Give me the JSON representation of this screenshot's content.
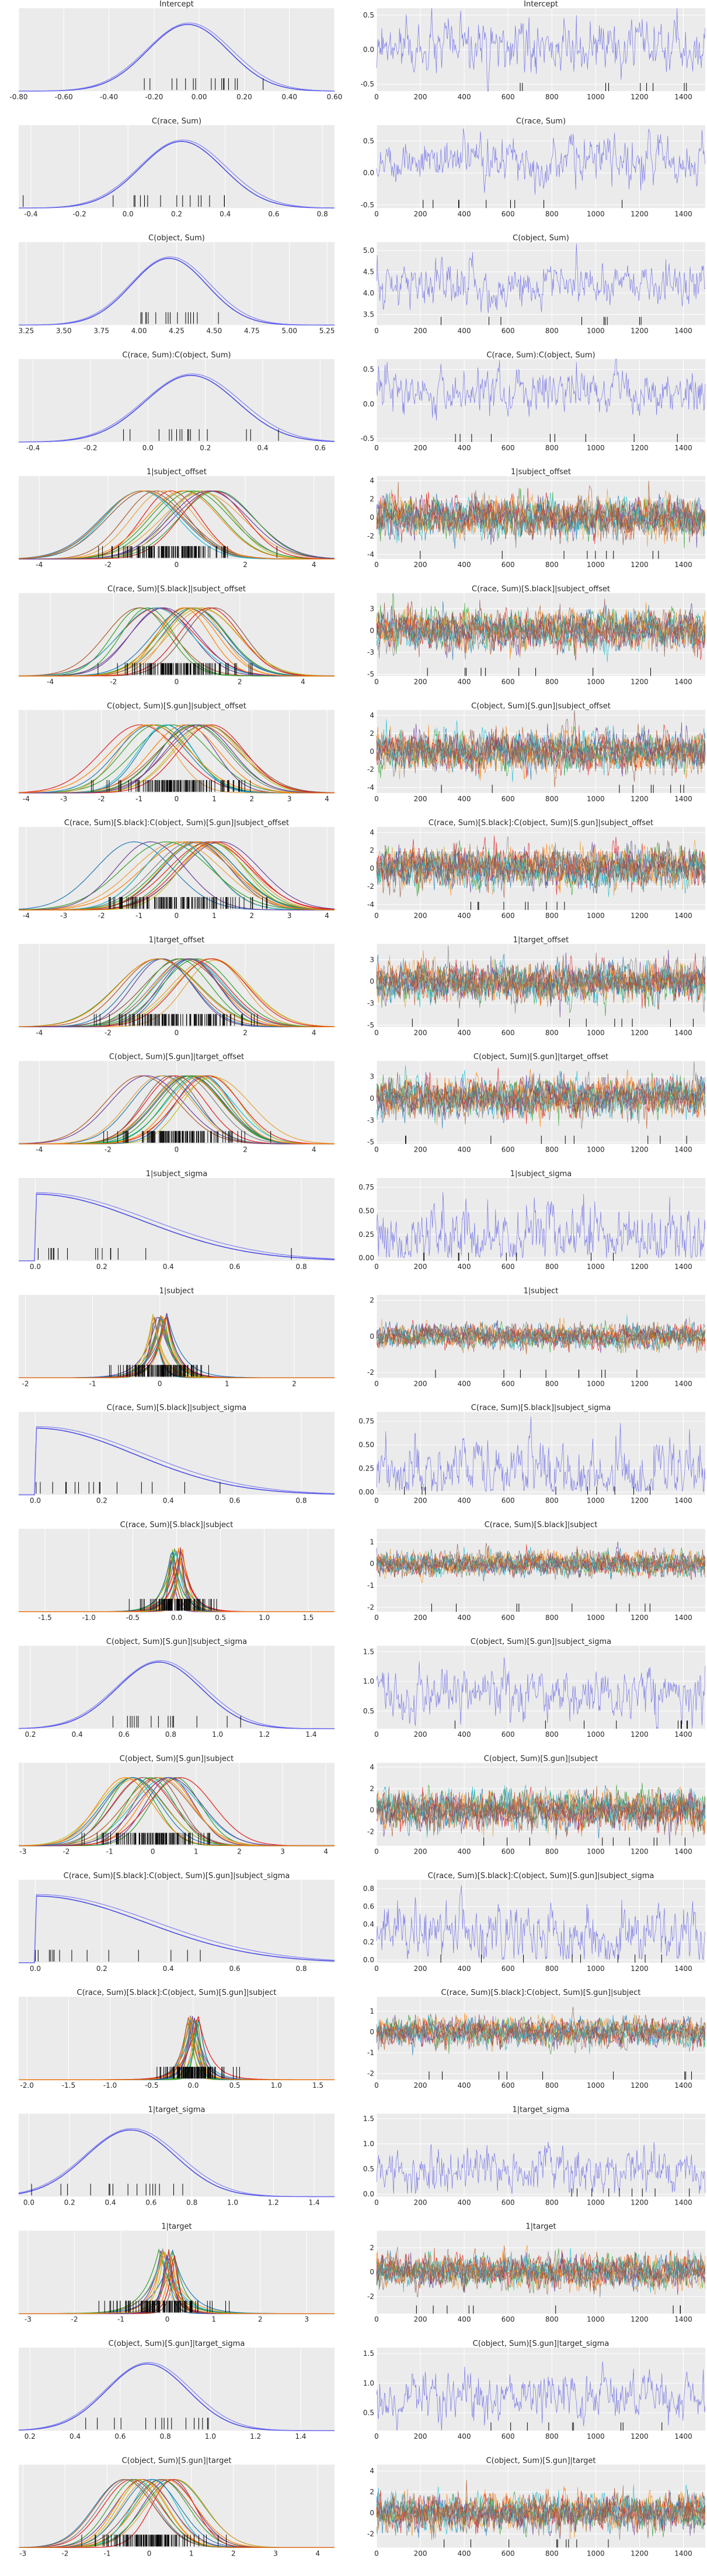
{
  "figure": {
    "style": {
      "background": "#ebebeb",
      "grid": "#ffffff",
      "text": "#262626",
      "series_default": "#4c4ce6"
    },
    "chain_colors": [
      "#e6a03c",
      "#33a02c",
      "#1f78b4",
      "#e31a1c",
      "#6a3d9a",
      "#ff7f00",
      "#b15928",
      "#17becf",
      "#8c564b",
      "#7f7f7f",
      "#bcbd22",
      "#2ca02c"
    ]
  },
  "chart_data": [
    {
      "row": 1,
      "title": "Intercept",
      "type": "density+trace",
      "multi": false,
      "density": {
        "x_ticks": [
          -0.8,
          -0.6,
          -0.4,
          -0.2,
          0.0,
          0.2,
          0.4,
          0.6
        ],
        "xlim": [
          -0.8,
          0.6
        ],
        "peak": -0.05,
        "spread": 0.18
      },
      "trace": {
        "y_ticks": [
          -0.5,
          0.0,
          0.5
        ],
        "ylim": [
          -0.6,
          0.6
        ],
        "x_ticks": [
          0,
          200,
          400,
          600,
          800,
          1000,
          1200,
          1400
        ],
        "xlim": [
          0,
          1500
        ],
        "center": 0.0,
        "amp": 0.18
      }
    },
    {
      "row": 2,
      "title": "C(race, Sum)",
      "type": "density+trace",
      "multi": false,
      "density": {
        "x_ticks": [
          -0.4,
          -0.2,
          0.0,
          0.2,
          0.4,
          0.6,
          0.8
        ],
        "xlim": [
          -0.45,
          0.85
        ],
        "peak": 0.22,
        "spread": 0.17
      },
      "trace": {
        "y_ticks": [
          -0.5,
          0.0,
          0.5
        ],
        "ylim": [
          -0.55,
          0.75
        ],
        "x_ticks": [
          0,
          200,
          400,
          600,
          800,
          1000,
          1200,
          1400
        ],
        "xlim": [
          0,
          1500
        ],
        "center": 0.2,
        "amp": 0.17
      }
    },
    {
      "row": 3,
      "title": "C(object, Sum)",
      "type": "density+trace",
      "multi": false,
      "density": {
        "x_ticks": [
          3.25,
          3.5,
          3.75,
          4.0,
          4.25,
          4.5,
          4.75,
          5.0,
          5.25
        ],
        "xlim": [
          3.2,
          5.3
        ],
        "peak": 4.2,
        "spread": 0.25
      },
      "trace": {
        "y_ticks": [
          3.5,
          4.0,
          4.5,
          5.0
        ],
        "ylim": [
          3.25,
          5.2
        ],
        "x_ticks": [
          0,
          200,
          400,
          600,
          800,
          1000,
          1200,
          1400
        ],
        "xlim": [
          0,
          1500
        ],
        "center": 4.2,
        "amp": 0.26
      }
    },
    {
      "row": 4,
      "title": "C(race, Sum):C(object, Sum)",
      "type": "density+trace",
      "multi": false,
      "density": {
        "x_ticks": [
          -0.4,
          -0.2,
          0.0,
          0.2,
          0.4,
          0.6
        ],
        "xlim": [
          -0.45,
          0.65
        ],
        "peak": 0.15,
        "spread": 0.16
      },
      "trace": {
        "y_ticks": [
          -0.5,
          0.0,
          0.5
        ],
        "ylim": [
          -0.55,
          0.65
        ],
        "x_ticks": [
          0,
          200,
          400,
          600,
          800,
          1000,
          1200,
          1400
        ],
        "xlim": [
          0,
          1500
        ],
        "center": 0.15,
        "amp": 0.16
      }
    },
    {
      "row": 5,
      "title": "1|subject_offset",
      "type": "density+trace",
      "multi": true,
      "density": {
        "x_ticks": [
          -4,
          -2,
          0,
          2,
          4
        ],
        "xlim": [
          -4.6,
          4.6
        ],
        "peak": 0.0,
        "spread": 1.0
      },
      "trace": {
        "y_ticks": [
          -4,
          -2,
          0,
          2,
          4
        ],
        "ylim": [
          -4.5,
          4.5
        ],
        "x_ticks": [
          0,
          200,
          400,
          600,
          800,
          1000,
          1200,
          1400
        ],
        "xlim": [
          0,
          1500
        ],
        "center": 0.0,
        "amp": 1.0
      }
    },
    {
      "row": 6,
      "title": "C(race, Sum)[S.black]|subject_offset",
      "type": "density+trace",
      "multi": true,
      "density": {
        "x_ticks": [
          -4,
          -2,
          0,
          2,
          4
        ],
        "xlim": [
          -5,
          5
        ],
        "peak": 0.0,
        "spread": 1.0
      },
      "trace": {
        "y_ticks": [
          -5.0,
          -2.5,
          0.0,
          2.5
        ],
        "ylim": [
          -5.2,
          4.3
        ],
        "x_ticks": [
          0,
          200,
          400,
          600,
          800,
          1000,
          1200,
          1400
        ],
        "xlim": [
          0,
          1500
        ],
        "center": 0.0,
        "amp": 1.0
      }
    },
    {
      "row": 7,
      "title": "C(object, Sum)[S.gun]|subject_offset",
      "type": "density+trace",
      "multi": true,
      "density": {
        "x_ticks": [
          -4,
          -3,
          -2,
          -1,
          0,
          1,
          2,
          3,
          4
        ],
        "xlim": [
          -4.2,
          4.2
        ],
        "peak": 0.0,
        "spread": 0.9
      },
      "trace": {
        "y_ticks": [
          -4,
          -2,
          0,
          2,
          4
        ],
        "ylim": [
          -4.6,
          4.6
        ],
        "x_ticks": [
          0,
          200,
          400,
          600,
          800,
          1000,
          1200,
          1400
        ],
        "xlim": [
          0,
          1500
        ],
        "center": 0.0,
        "amp": 1.0
      }
    },
    {
      "row": 8,
      "title": "C(race, Sum)[S.black]:C(object, Sum)[S.gun]|subject_offset",
      "type": "density+trace",
      "multi": true,
      "density": {
        "x_ticks": [
          -4,
          -3,
          -2,
          -1,
          0,
          1,
          2,
          3,
          4
        ],
        "xlim": [
          -4.2,
          4.2
        ],
        "peak": 0.0,
        "spread": 1.0
      },
      "trace": {
        "y_ticks": [
          -4,
          -2,
          0,
          2,
          4
        ],
        "ylim": [
          -4.6,
          4.6
        ],
        "x_ticks": [
          0,
          200,
          400,
          600,
          800,
          1000,
          1200,
          1400
        ],
        "xlim": [
          0,
          1500
        ],
        "center": 0.0,
        "amp": 1.0
      }
    },
    {
      "row": 9,
      "title": "1|target_offset",
      "type": "density+trace",
      "multi": true,
      "density": {
        "x_ticks": [
          -4,
          -2,
          0,
          2,
          4
        ],
        "xlim": [
          -4.6,
          4.6
        ],
        "peak": 0.0,
        "spread": 1.0
      },
      "trace": {
        "y_ticks": [
          -5.0,
          -2.5,
          0.0,
          2.5
        ],
        "ylim": [
          -5.2,
          4.3
        ],
        "x_ticks": [
          0,
          200,
          400,
          600,
          800,
          1000,
          1200,
          1400
        ],
        "xlim": [
          0,
          1500
        ],
        "center": 0.0,
        "amp": 1.0
      }
    },
    {
      "row": 10,
      "title": "C(object, Sum)[S.gun]|target_offset",
      "type": "density+trace",
      "multi": true,
      "density": {
        "x_ticks": [
          -4,
          -2,
          0,
          2,
          4
        ],
        "xlim": [
          -4.6,
          4.6
        ],
        "peak": 0.0,
        "spread": 0.9
      },
      "trace": {
        "y_ticks": [
          -5.0,
          -2.5,
          0.0,
          2.5
        ],
        "ylim": [
          -5.2,
          4.3
        ],
        "x_ticks": [
          0,
          200,
          400,
          600,
          800,
          1000,
          1200,
          1400
        ],
        "xlim": [
          0,
          1500
        ],
        "center": 0.0,
        "amp": 1.0
      }
    },
    {
      "row": 11,
      "title": "1|subject_sigma",
      "type": "density+trace",
      "multi": false,
      "density": {
        "x_ticks": [
          0.0,
          0.2,
          0.4,
          0.6,
          0.8
        ],
        "xlim": [
          -0.05,
          0.9
        ],
        "peak": 0.0,
        "spread": 0.32,
        "half": true
      },
      "trace": {
        "y_ticks": [
          0.0,
          0.25,
          0.5,
          0.75
        ],
        "ylim": [
          -0.03,
          0.85
        ],
        "x_ticks": [
          0,
          200,
          400,
          600,
          800,
          1000,
          1200,
          1400
        ],
        "xlim": [
          0,
          1500
        ],
        "center": 0.25,
        "amp": 0.17,
        "floor": 0.0
      }
    },
    {
      "row": 12,
      "title": "1|subject",
      "type": "density+trace",
      "multi": true,
      "peaked": true,
      "density": {
        "x_ticks": [
          -2,
          -1,
          0,
          1,
          2
        ],
        "xlim": [
          -2.1,
          2.6
        ],
        "peak": 0.0,
        "spread": 0.3
      },
      "trace": {
        "y_ticks": [
          -2,
          0,
          2
        ],
        "ylim": [
          -2.3,
          2.3
        ],
        "x_ticks": [
          0,
          200,
          400,
          600,
          800,
          1000,
          1200,
          1400
        ],
        "xlim": [
          0,
          1500
        ],
        "center": 0.0,
        "amp": 0.3
      }
    },
    {
      "row": 13,
      "title": "C(race, Sum)[S.black]|subject_sigma",
      "type": "density+trace",
      "multi": false,
      "density": {
        "x_ticks": [
          0.0,
          0.2,
          0.4,
          0.6,
          0.8
        ],
        "xlim": [
          -0.05,
          0.9
        ],
        "peak": 0.0,
        "spread": 0.3,
        "half": true
      },
      "trace": {
        "y_ticks": [
          0.0,
          0.25,
          0.5,
          0.75
        ],
        "ylim": [
          -0.03,
          0.85
        ],
        "x_ticks": [
          0,
          200,
          400,
          600,
          800,
          1000,
          1200,
          1400
        ],
        "xlim": [
          0,
          1500
        ],
        "center": 0.22,
        "amp": 0.17,
        "floor": 0.0
      }
    },
    {
      "row": 14,
      "title": "C(race, Sum)[S.black]|subject",
      "type": "density+trace",
      "multi": true,
      "peaked": true,
      "density": {
        "x_ticks": [
          -1.5,
          -1.0,
          -0.5,
          0.0,
          0.5,
          1.0,
          1.5
        ],
        "xlim": [
          -1.8,
          1.8
        ],
        "peak": 0.0,
        "spread": 0.18
      },
      "trace": {
        "y_ticks": [
          -2,
          -1,
          0,
          1
        ],
        "ylim": [
          -2.2,
          1.6
        ],
        "x_ticks": [
          0,
          200,
          400,
          600,
          800,
          1000,
          1200,
          1400
        ],
        "xlim": [
          0,
          1500
        ],
        "center": 0.0,
        "amp": 0.25
      }
    },
    {
      "row": 15,
      "title": "C(object, Sum)[S.gun]|subject_sigma",
      "type": "density+trace",
      "multi": false,
      "density": {
        "x_ticks": [
          0.2,
          0.4,
          0.6,
          0.8,
          1.0,
          1.2,
          1.4
        ],
        "xlim": [
          0.15,
          1.5
        ],
        "peak": 0.75,
        "spread": 0.18
      },
      "trace": {
        "y_ticks": [
          0.5,
          1.0,
          1.5
        ],
        "ylim": [
          0.2,
          1.6
        ],
        "x_ticks": [
          0,
          200,
          400,
          600,
          800,
          1000,
          1200,
          1400
        ],
        "xlim": [
          0,
          1500
        ],
        "center": 0.78,
        "amp": 0.2
      }
    },
    {
      "row": 16,
      "title": "C(object, Sum)[S.gun]|subject",
      "type": "density+trace",
      "multi": true,
      "density": {
        "x_ticks": [
          -3,
          -2,
          -1,
          0,
          1,
          2,
          3,
          4
        ],
        "xlim": [
          -3.1,
          4.2
        ],
        "peak": 0.0,
        "spread": 0.65
      },
      "trace": {
        "y_ticks": [
          -2,
          0,
          2,
          4
        ],
        "ylim": [
          -3.3,
          4.4
        ],
        "x_ticks": [
          0,
          200,
          400,
          600,
          800,
          1000,
          1200,
          1400
        ],
        "xlim": [
          0,
          1500
        ],
        "center": 0.0,
        "amp": 0.8
      }
    },
    {
      "row": 17,
      "title": "C(race, Sum)[S.black]:C(object, Sum)[S.gun]|subject_sigma",
      "type": "density+trace",
      "multi": false,
      "density": {
        "x_ticks": [
          0.0,
          0.2,
          0.4,
          0.6,
          0.8
        ],
        "xlim": [
          -0.05,
          0.9
        ],
        "peak": 0.0,
        "spread": 0.33,
        "half": true
      },
      "trace": {
        "y_ticks": [
          0.0,
          0.2,
          0.4,
          0.6,
          0.8
        ],
        "ylim": [
          -0.03,
          0.9
        ],
        "x_ticks": [
          0,
          200,
          400,
          600,
          800,
          1000,
          1200,
          1400
        ],
        "xlim": [
          0,
          1500
        ],
        "center": 0.28,
        "amp": 0.17,
        "floor": 0.0
      }
    },
    {
      "row": 18,
      "title": "C(race, Sum)[S.black]:C(object, Sum)[S.gun]|subject",
      "type": "density+trace",
      "multi": true,
      "peaked": true,
      "density": {
        "x_ticks": [
          -2.0,
          -1.5,
          -1.0,
          -0.5,
          0.0,
          0.5,
          1.0,
          1.5
        ],
        "xlim": [
          -2.1,
          1.7
        ],
        "peak": 0.0,
        "spread": 0.2
      },
      "trace": {
        "y_ticks": [
          -2,
          -1,
          0,
          1
        ],
        "ylim": [
          -2.3,
          1.7
        ],
        "x_ticks": [
          0,
          200,
          400,
          600,
          800,
          1000,
          1200,
          1400
        ],
        "xlim": [
          0,
          1500
        ],
        "center": 0.0,
        "amp": 0.3
      }
    },
    {
      "row": 19,
      "title": "1|target_sigma",
      "type": "density+trace",
      "multi": false,
      "density": {
        "x_ticks": [
          0.0,
          0.2,
          0.4,
          0.6,
          0.8,
          1.0,
          1.2,
          1.4
        ],
        "xlim": [
          -0.05,
          1.5
        ],
        "peak": 0.5,
        "spread": 0.22
      },
      "trace": {
        "y_ticks": [
          0.0,
          0.5,
          1.0,
          1.5
        ],
        "ylim": [
          -0.05,
          1.6
        ],
        "x_ticks": [
          0,
          200,
          400,
          600,
          800,
          1000,
          1200,
          1400
        ],
        "xlim": [
          0,
          1500
        ],
        "center": 0.5,
        "amp": 0.22,
        "floor": 0.0
      }
    },
    {
      "row": 20,
      "title": "1|target",
      "type": "density+trace",
      "multi": true,
      "peaked": true,
      "density": {
        "x_ticks": [
          -3,
          -2,
          -1,
          0,
          1,
          2,
          3
        ],
        "xlim": [
          -3.2,
          3.6
        ],
        "peak": 0.0,
        "spread": 0.5
      },
      "trace": {
        "y_ticks": [
          -2,
          0,
          2
        ],
        "ylim": [
          -3.4,
          3.4
        ],
        "x_ticks": [
          0,
          200,
          400,
          600,
          800,
          1000,
          1200,
          1400
        ],
        "xlim": [
          0,
          1500
        ],
        "center": 0.0,
        "amp": 0.6
      }
    },
    {
      "row": 21,
      "title": "C(object, Sum)[S.gun]|target_sigma",
      "type": "density+trace",
      "multi": false,
      "density": {
        "x_ticks": [
          0.2,
          0.4,
          0.6,
          0.8,
          1.0,
          1.2,
          1.4
        ],
        "xlim": [
          0.15,
          1.55
        ],
        "peak": 0.72,
        "spread": 0.18
      },
      "trace": {
        "y_ticks": [
          0.5,
          1.0,
          1.5
        ],
        "ylim": [
          0.2,
          1.6
        ],
        "x_ticks": [
          0,
          200,
          400,
          600,
          800,
          1000,
          1200,
          1400
        ],
        "xlim": [
          0,
          1500
        ],
        "center": 0.75,
        "amp": 0.2
      }
    },
    {
      "row": 22,
      "title": "C(object, Sum)[S.gun]|target",
      "type": "density+trace",
      "multi": true,
      "density": {
        "x_ticks": [
          -3,
          -2,
          -1,
          0,
          1,
          2,
          3,
          4
        ],
        "xlim": [
          -3.1,
          4.4
        ],
        "peak": 0.0,
        "spread": 0.6
      },
      "trace": {
        "y_ticks": [
          -2,
          0,
          2,
          4
        ],
        "ylim": [
          -3.3,
          4.6
        ],
        "x_ticks": [
          0,
          200,
          400,
          600,
          800,
          1000,
          1200,
          1400
        ],
        "xlim": [
          0,
          1500
        ],
        "center": 0.0,
        "amp": 0.8
      }
    }
  ]
}
